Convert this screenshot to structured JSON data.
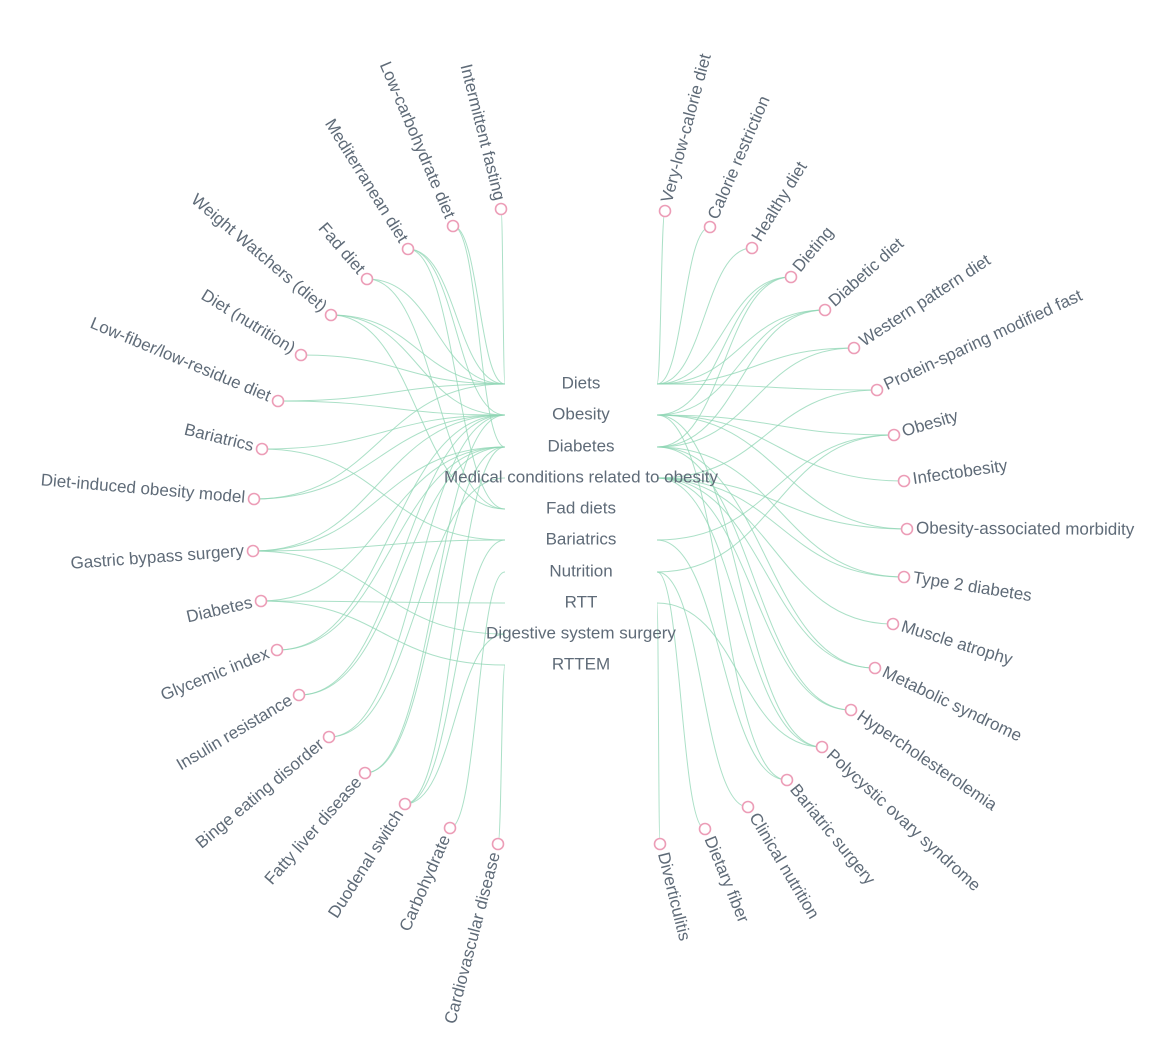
{
  "colors": {
    "link": "#8fd6b4",
    "node_stroke": "#ec9db7",
    "text": "#5f6b78",
    "background": "#ffffff"
  },
  "hubs": [
    "Diets",
    "Obesity",
    "Diabetes",
    "Medical conditions related to obesity",
    "Fad diets",
    "Bariatrics",
    "Nutrition",
    "RTT",
    "Digestive system surgery",
    "RTTEM"
  ],
  "left_nodes": [
    {
      "label": "Intermittent fasting",
      "hubs": [
        0
      ]
    },
    {
      "label": "Low-carbohydrate diet",
      "hubs": [
        0,
        2
      ]
    },
    {
      "label": "Mediterranean diet",
      "hubs": [
        0,
        1,
        4
      ]
    },
    {
      "label": "Fad diet",
      "hubs": [
        0,
        4
      ]
    },
    {
      "label": "Weight Watchers (diet)",
      "hubs": [
        0,
        1,
        4
      ]
    },
    {
      "label": "Diet (nutrition)",
      "hubs": [
        0
      ]
    },
    {
      "label": "Low-fiber/low-residue diet",
      "hubs": [
        0,
        1
      ]
    },
    {
      "label": "Bariatrics",
      "hubs": [
        1,
        5
      ]
    },
    {
      "label": "Diet-induced obesity model",
      "hubs": [
        0,
        1
      ]
    },
    {
      "label": "Gastric bypass surgery",
      "hubs": [
        1,
        2,
        5,
        8
      ]
    },
    {
      "label": "Diabetes",
      "hubs": [
        2,
        7,
        9
      ]
    },
    {
      "label": "Glycemic index",
      "hubs": [
        1,
        2
      ]
    },
    {
      "label": "Insulin resistance",
      "hubs": [
        1,
        2
      ]
    },
    {
      "label": "Binge eating disorder",
      "hubs": [
        1,
        3
      ]
    },
    {
      "label": "Fatty liver disease",
      "hubs": [
        1,
        2
      ]
    },
    {
      "label": "Duodenal switch",
      "hubs": [
        2,
        5,
        8
      ]
    },
    {
      "label": "Carbohydrate",
      "hubs": [
        6
      ]
    },
    {
      "label": "Cardiovascular disease",
      "hubs": [
        9
      ]
    }
  ],
  "right_nodes": [
    {
      "label": "Very-low-calorie diet",
      "hubs": [
        0
      ]
    },
    {
      "label": "Calorie restriction",
      "hubs": [
        0
      ]
    },
    {
      "label": "Healthy diet",
      "hubs": [
        0
      ]
    },
    {
      "label": "Dieting",
      "hubs": [
        0,
        1,
        2
      ]
    },
    {
      "label": "Diabetic diet",
      "hubs": [
        0,
        1,
        2
      ]
    },
    {
      "label": "Western pattern diet",
      "hubs": [
        0,
        2
      ]
    },
    {
      "label": "Protein-sparing modified fast",
      "hubs": [
        0,
        3
      ]
    },
    {
      "label": "Obesity",
      "hubs": [
        1,
        5,
        6
      ]
    },
    {
      "label": "Infectobesity",
      "hubs": [
        1
      ]
    },
    {
      "label": "Obesity-associated morbidity",
      "hubs": [
        1,
        3
      ]
    },
    {
      "label": "Type 2 diabetes",
      "hubs": [
        2,
        3
      ]
    },
    {
      "label": "Muscle atrophy",
      "hubs": [
        3
      ]
    },
    {
      "label": "Metabolic syndrome",
      "hubs": [
        2,
        3
      ]
    },
    {
      "label": "Hypercholesterolemia",
      "hubs": [
        2,
        3
      ]
    },
    {
      "label": "Polycystic ovary syndrome",
      "hubs": [
        1,
        3,
        7
      ]
    },
    {
      "label": "Bariatric surgery",
      "hubs": [
        1,
        5
      ]
    },
    {
      "label": "Clinical nutrition",
      "hubs": [
        6
      ]
    },
    {
      "label": "Dietary fiber",
      "hubs": [
        6
      ]
    },
    {
      "label": "Diverticulitis",
      "hubs": [
        7
      ]
    }
  ]
}
